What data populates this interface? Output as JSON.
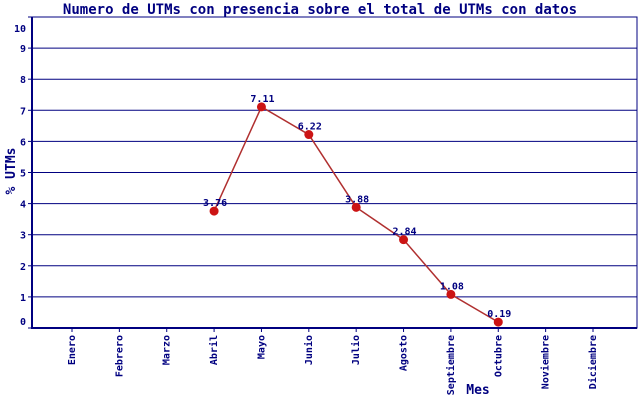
{
  "chart_data": {
    "type": "line",
    "title": "Numero de UTMs con presencia sobre el total de UTMs con datos",
    "xlabel": "Mes",
    "ylabel": "% UTMs",
    "ylim": [
      0,
      10
    ],
    "y_ticks": [
      0,
      1,
      2,
      3,
      4,
      5,
      6,
      7,
      8,
      9,
      10
    ],
    "grid": true,
    "legend": "none",
    "categories": [
      "Enero",
      "Febrero",
      "Marzo",
      "Abril",
      "Mayo",
      "Junio",
      "Julio",
      "Agosto",
      "Septiembre",
      "Octubre",
      "Noviembre",
      "Diciembre"
    ],
    "values": [
      null,
      null,
      null,
      3.76,
      7.11,
      6.22,
      3.88,
      2.84,
      1.08,
      0.19,
      null,
      null
    ],
    "point_labels": [
      "",
      "",
      "",
      "3.76",
      "7.11",
      "6.22",
      "3.88",
      "2.84",
      "1.08",
      "0.19",
      "",
      ""
    ]
  },
  "colors": {
    "axis": "#000080",
    "grid": "#000080",
    "text": "#000080",
    "series_line": "#b03030",
    "series_point": "#cc1414",
    "background": "#ffffff"
  }
}
